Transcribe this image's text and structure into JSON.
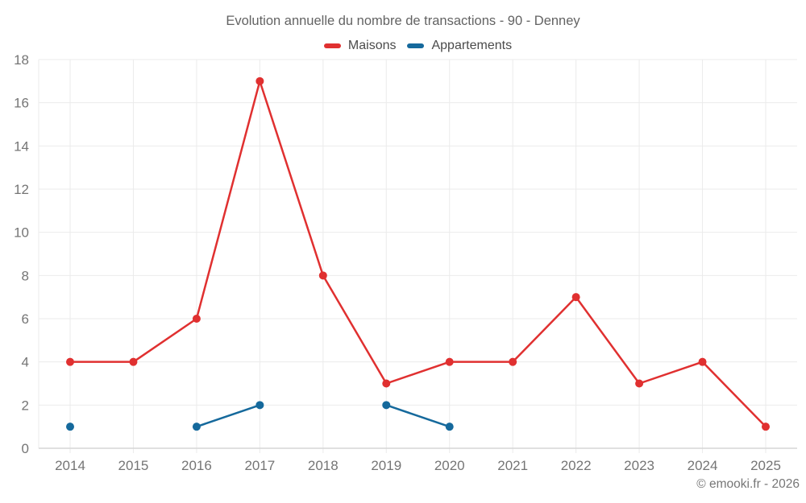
{
  "header": {
    "title": "Evolution annuelle du nombre de transactions - 90 - Denney"
  },
  "legend": {
    "items": [
      {
        "label": "Maisons",
        "color": "#e03030"
      },
      {
        "label": "Appartements",
        "color": "#15699c"
      }
    ]
  },
  "footer": {
    "credit": "© emooki.fr - 2026"
  },
  "chart_data": {
    "type": "line",
    "title": "Evolution annuelle du nombre de transactions - 90 - Denney",
    "categories": [
      "2014",
      "2015",
      "2016",
      "2017",
      "2018",
      "2019",
      "2020",
      "2021",
      "2022",
      "2023",
      "2024",
      "2025"
    ],
    "series": [
      {
        "name": "Maisons",
        "color": "#e03030",
        "values": [
          4,
          4,
          6,
          17,
          8,
          3,
          4,
          4,
          7,
          3,
          4,
          1
        ]
      },
      {
        "name": "Appartements",
        "color": "#15699c",
        "values": [
          1,
          null,
          1,
          2,
          null,
          2,
          1,
          null,
          null,
          null,
          null,
          null
        ]
      }
    ],
    "xlabel": "",
    "ylabel": "",
    "ylim": [
      0,
      18
    ],
    "ytick_step": 2,
    "grid": true,
    "legend_position": "top",
    "style": {
      "grid_color": "#ebebeb",
      "axis_color": "#d6d6d6",
      "tick_label_color": "#757575",
      "marker_radius": 5,
      "line_width": 2.5
    }
  }
}
